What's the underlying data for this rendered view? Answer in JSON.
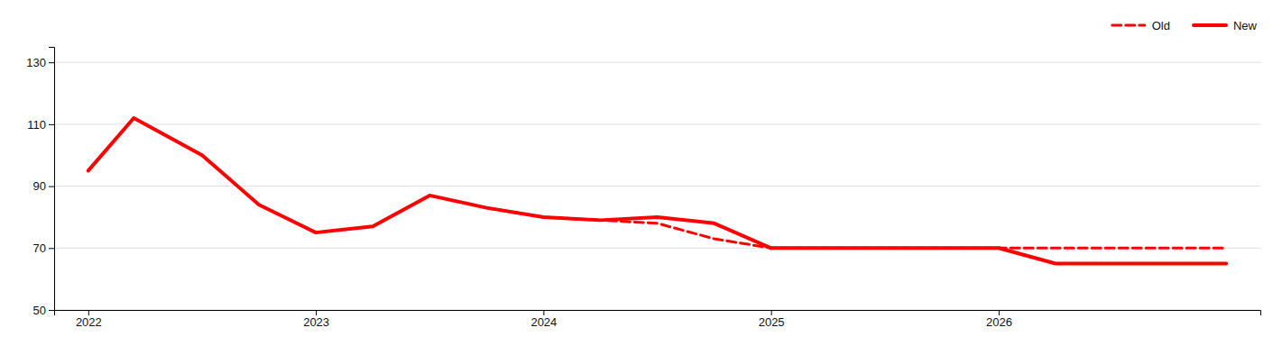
{
  "chart_data": {
    "type": "line",
    "series": [
      {
        "name": "Old",
        "color": "#FF0000",
        "line_style": "dashed",
        "x": [
          2023.75,
          2024.0,
          2024.25,
          2024.5,
          2024.75,
          2025.0,
          2025.25,
          2025.5,
          2025.75,
          2026.0,
          2026.25,
          2026.5,
          2026.75,
          2027.0
        ],
        "values": [
          83,
          80,
          79,
          78,
          73,
          70,
          70,
          70,
          70,
          70,
          70,
          70,
          70,
          70
        ]
      },
      {
        "name": "New",
        "color": "#FF0000",
        "line_style": "solid",
        "x": [
          2022.0,
          2022.2,
          2022.5,
          2022.75,
          2023.0,
          2023.25,
          2023.5,
          2023.75,
          2024.0,
          2024.25,
          2024.5,
          2024.75,
          2025.0,
          2025.25,
          2025.5,
          2025.75,
          2026.0,
          2026.25,
          2026.5,
          2026.75,
          2027.0
        ],
        "values": [
          95,
          112,
          100,
          84,
          75,
          77,
          87,
          83,
          80,
          79,
          80,
          78,
          70,
          70,
          70,
          70,
          70,
          65,
          65,
          65,
          65
        ]
      }
    ],
    "xlim": [
      2021.85,
      2027.15
    ],
    "xticks": [
      2022,
      2023,
      2024,
      2025,
      2026
    ],
    "ylim": [
      50,
      135
    ],
    "yticks": [
      50,
      70,
      90,
      110,
      130
    ],
    "grid": true,
    "legend": "top-right"
  }
}
